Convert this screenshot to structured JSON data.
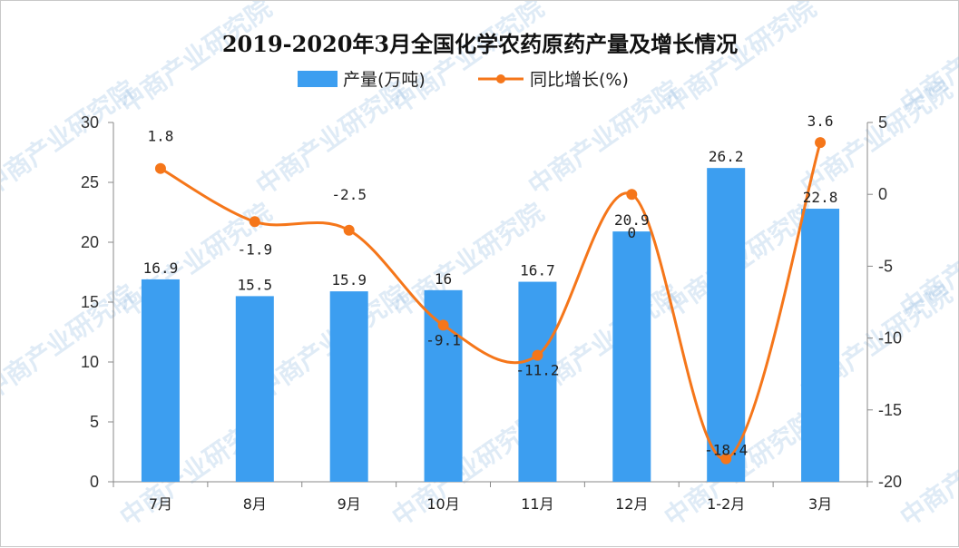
{
  "chart_data": {
    "type": "bar+line",
    "title": "2019-2020年3月全国化学农药原药产量及增长情况",
    "categories": [
      "7月",
      "8月",
      "9月",
      "10月",
      "11月",
      "12月",
      "1-2月",
      "3月"
    ],
    "series": [
      {
        "name": "产量(万吨)",
        "type": "bar",
        "axis": "left",
        "color": "#3c9ef0",
        "values": [
          16.9,
          15.5,
          15.9,
          16,
          16.7,
          20.9,
          26.2,
          22.8
        ],
        "labels": [
          "16.9",
          "15.5",
          "15.9",
          "16",
          "16.7",
          "20.9",
          "26.2",
          "22.8"
        ]
      },
      {
        "name": "同比增长(%)",
        "type": "line",
        "axis": "right",
        "color": "#f5761a",
        "values": [
          1.8,
          -1.9,
          -2.5,
          -9.1,
          -11.2,
          0,
          -18.4,
          3.6
        ],
        "labels": [
          "1.8",
          "-1.9",
          "-2.5",
          "-9.1",
          "-11.2",
          "0",
          "-18.4",
          "3.6"
        ]
      }
    ],
    "y_left": {
      "min": 0,
      "max": 30,
      "ticks": [
        "0",
        "5",
        "10",
        "15",
        "20",
        "25",
        "30"
      ]
    },
    "y_right": {
      "min": -20,
      "max": 5,
      "ticks": [
        "-20",
        "-15",
        "-10",
        "-5",
        "0",
        "5"
      ]
    },
    "legend_position": "top-center",
    "grid": false
  },
  "watermark": "中商产业研究院"
}
